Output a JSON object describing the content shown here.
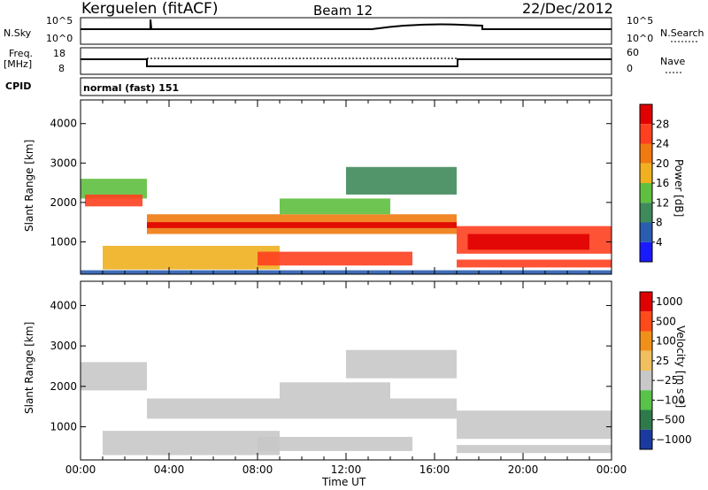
{
  "header": {
    "radar": "Kerguelen (fitACF)",
    "beam": "Beam 12",
    "date": "22/Dec/2012"
  },
  "status_panels": {
    "nsky_label": "N.Sky",
    "nsky_ticks": [
      "10^5",
      "10^0"
    ],
    "nsearch_label": "N.Search",
    "nsearch_ticks": [
      "10^5",
      "10^0"
    ],
    "freq_label_1": "Freq.",
    "freq_label_2": "[MHz]",
    "freq_ticks": [
      "18",
      "8"
    ],
    "nave_label": "Nave",
    "nave_ticks": [
      "60",
      "0"
    ],
    "cpid_label": "CPID",
    "cpid_value": "normal (fast) 151"
  },
  "chart_data": [
    {
      "type": "heatmap",
      "name": "Power",
      "ylabel": "Slant Range [km]",
      "ylim": [
        180,
        4600
      ],
      "yticks": [
        "1000",
        "2000",
        "3000",
        "4000"
      ],
      "ytick_values": [
        1000,
        2000,
        3000,
        4000
      ],
      "colorbar_label": "Power [dB]",
      "colorbar_ticks": [
        "4",
        "8",
        "12",
        "16",
        "20",
        "24",
        "28"
      ],
      "colors": [
        "#1a1aff",
        "#2a5db0",
        "#3f8a5a",
        "#5fbf3f",
        "#f0b020",
        "#f07a10",
        "#ff4020",
        "#e00000"
      ],
      "bands": [
        {
          "x0": 0.0,
          "x1": 3.0,
          "y0": 2100,
          "y1": 2600,
          "level": 3
        },
        {
          "x0": 0.2,
          "x1": 2.8,
          "y0": 1900,
          "y1": 2200,
          "level": 6
        },
        {
          "x0": 3.0,
          "x1": 17.0,
          "y0": 1200,
          "y1": 1700,
          "level": 5
        },
        {
          "x0": 3.0,
          "x1": 17.0,
          "y0": 1350,
          "y1": 1500,
          "level": 7
        },
        {
          "x0": 1.0,
          "x1": 9.0,
          "y0": 300,
          "y1": 900,
          "level": 4
        },
        {
          "x0": 8.0,
          "x1": 15.0,
          "y0": 400,
          "y1": 750,
          "level": 6
        },
        {
          "x0": 17.0,
          "x1": 24.0,
          "y0": 700,
          "y1": 1400,
          "level": 6
        },
        {
          "x0": 17.5,
          "x1": 23.0,
          "y0": 800,
          "y1": 1200,
          "level": 7
        },
        {
          "x0": 17.0,
          "x1": 24.0,
          "y0": 350,
          "y1": 550,
          "level": 6
        },
        {
          "x0": 12.0,
          "x1": 17.0,
          "y0": 2200,
          "y1": 2900,
          "level": 2
        },
        {
          "x0": 9.0,
          "x1": 14.0,
          "y0": 1700,
          "y1": 2100,
          "level": 3
        },
        {
          "x0": 0.0,
          "x1": 24.0,
          "y0": 180,
          "y1": 280,
          "level": 1
        }
      ]
    },
    {
      "type": "heatmap",
      "name": "Velocity",
      "ylabel": "Slant Range [km]",
      "xlabel": "Time UT",
      "xlim": [
        0,
        24
      ],
      "xticks": [
        "00:00",
        "04:00",
        "08:00",
        "12:00",
        "16:00",
        "20:00",
        "00:00"
      ],
      "ylim": [
        180,
        4600
      ],
      "yticks": [
        "1000",
        "2000",
        "3000",
        "4000"
      ],
      "ytick_values": [
        1000,
        2000,
        3000,
        4000
      ],
      "colorbar_label": "Velocity [m s⁻¹]",
      "colorbar_ticks": [
        "1000",
        "500",
        "100",
        "25",
        "−25",
        "−100",
        "−500",
        "−1000"
      ],
      "colors": [
        "#1a3aa0",
        "#2e7a4a",
        "#58c24a",
        "#c8c8c8",
        "#f0c060",
        "#f0901a",
        "#ff4a1a",
        "#e00000"
      ],
      "bands": [
        {
          "x0": 0.0,
          "x1": 3.0,
          "y0": 1900,
          "y1": 2600,
          "level": 3
        },
        {
          "x0": 3.0,
          "x1": 17.0,
          "y0": 1200,
          "y1": 1700,
          "level": 3
        },
        {
          "x0": 1.0,
          "x1": 9.0,
          "y0": 300,
          "y1": 900,
          "level": 3
        },
        {
          "x0": 8.0,
          "x1": 15.0,
          "y0": 400,
          "y1": 750,
          "level": 3
        },
        {
          "x0": 17.0,
          "x1": 24.0,
          "y0": 700,
          "y1": 1400,
          "level": 3
        },
        {
          "x0": 17.0,
          "x1": 24.0,
          "y0": 350,
          "y1": 550,
          "level": 3
        },
        {
          "x0": 12.0,
          "x1": 17.0,
          "y0": 2200,
          "y1": 2900,
          "level": 3
        },
        {
          "x0": 9.0,
          "x1": 14.0,
          "y0": 1700,
          "y1": 2100,
          "level": 3
        }
      ]
    }
  ]
}
